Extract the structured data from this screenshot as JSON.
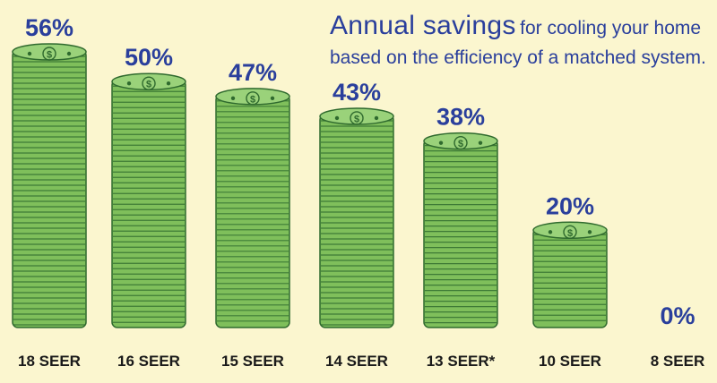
{
  "title": {
    "main": "Annual savings",
    "rest": "for cooling your home",
    "line2": "based on the efficiency of a matched system."
  },
  "colors": {
    "background": "#fbf6cf",
    "bill_face": "#7fbf5b",
    "bill_edge": "#2f6a2e",
    "value_text": "#2a3f9c",
    "label_text": "#1a1a1a"
  },
  "chart_data": {
    "type": "bar",
    "bar_style": "stacks of dollar bills",
    "categories": [
      "18 SEER",
      "16 SEER",
      "15 SEER",
      "14 SEER",
      "13 SEER*",
      "10 SEER",
      "8 SEER"
    ],
    "values": [
      56,
      50,
      47,
      43,
      38,
      20,
      0
    ],
    "value_labels": [
      "56%",
      "50%",
      "47%",
      "43%",
      "38%",
      "20%",
      "0%"
    ],
    "ylim": [
      0,
      56
    ],
    "grid": false,
    "legend": "none"
  }
}
